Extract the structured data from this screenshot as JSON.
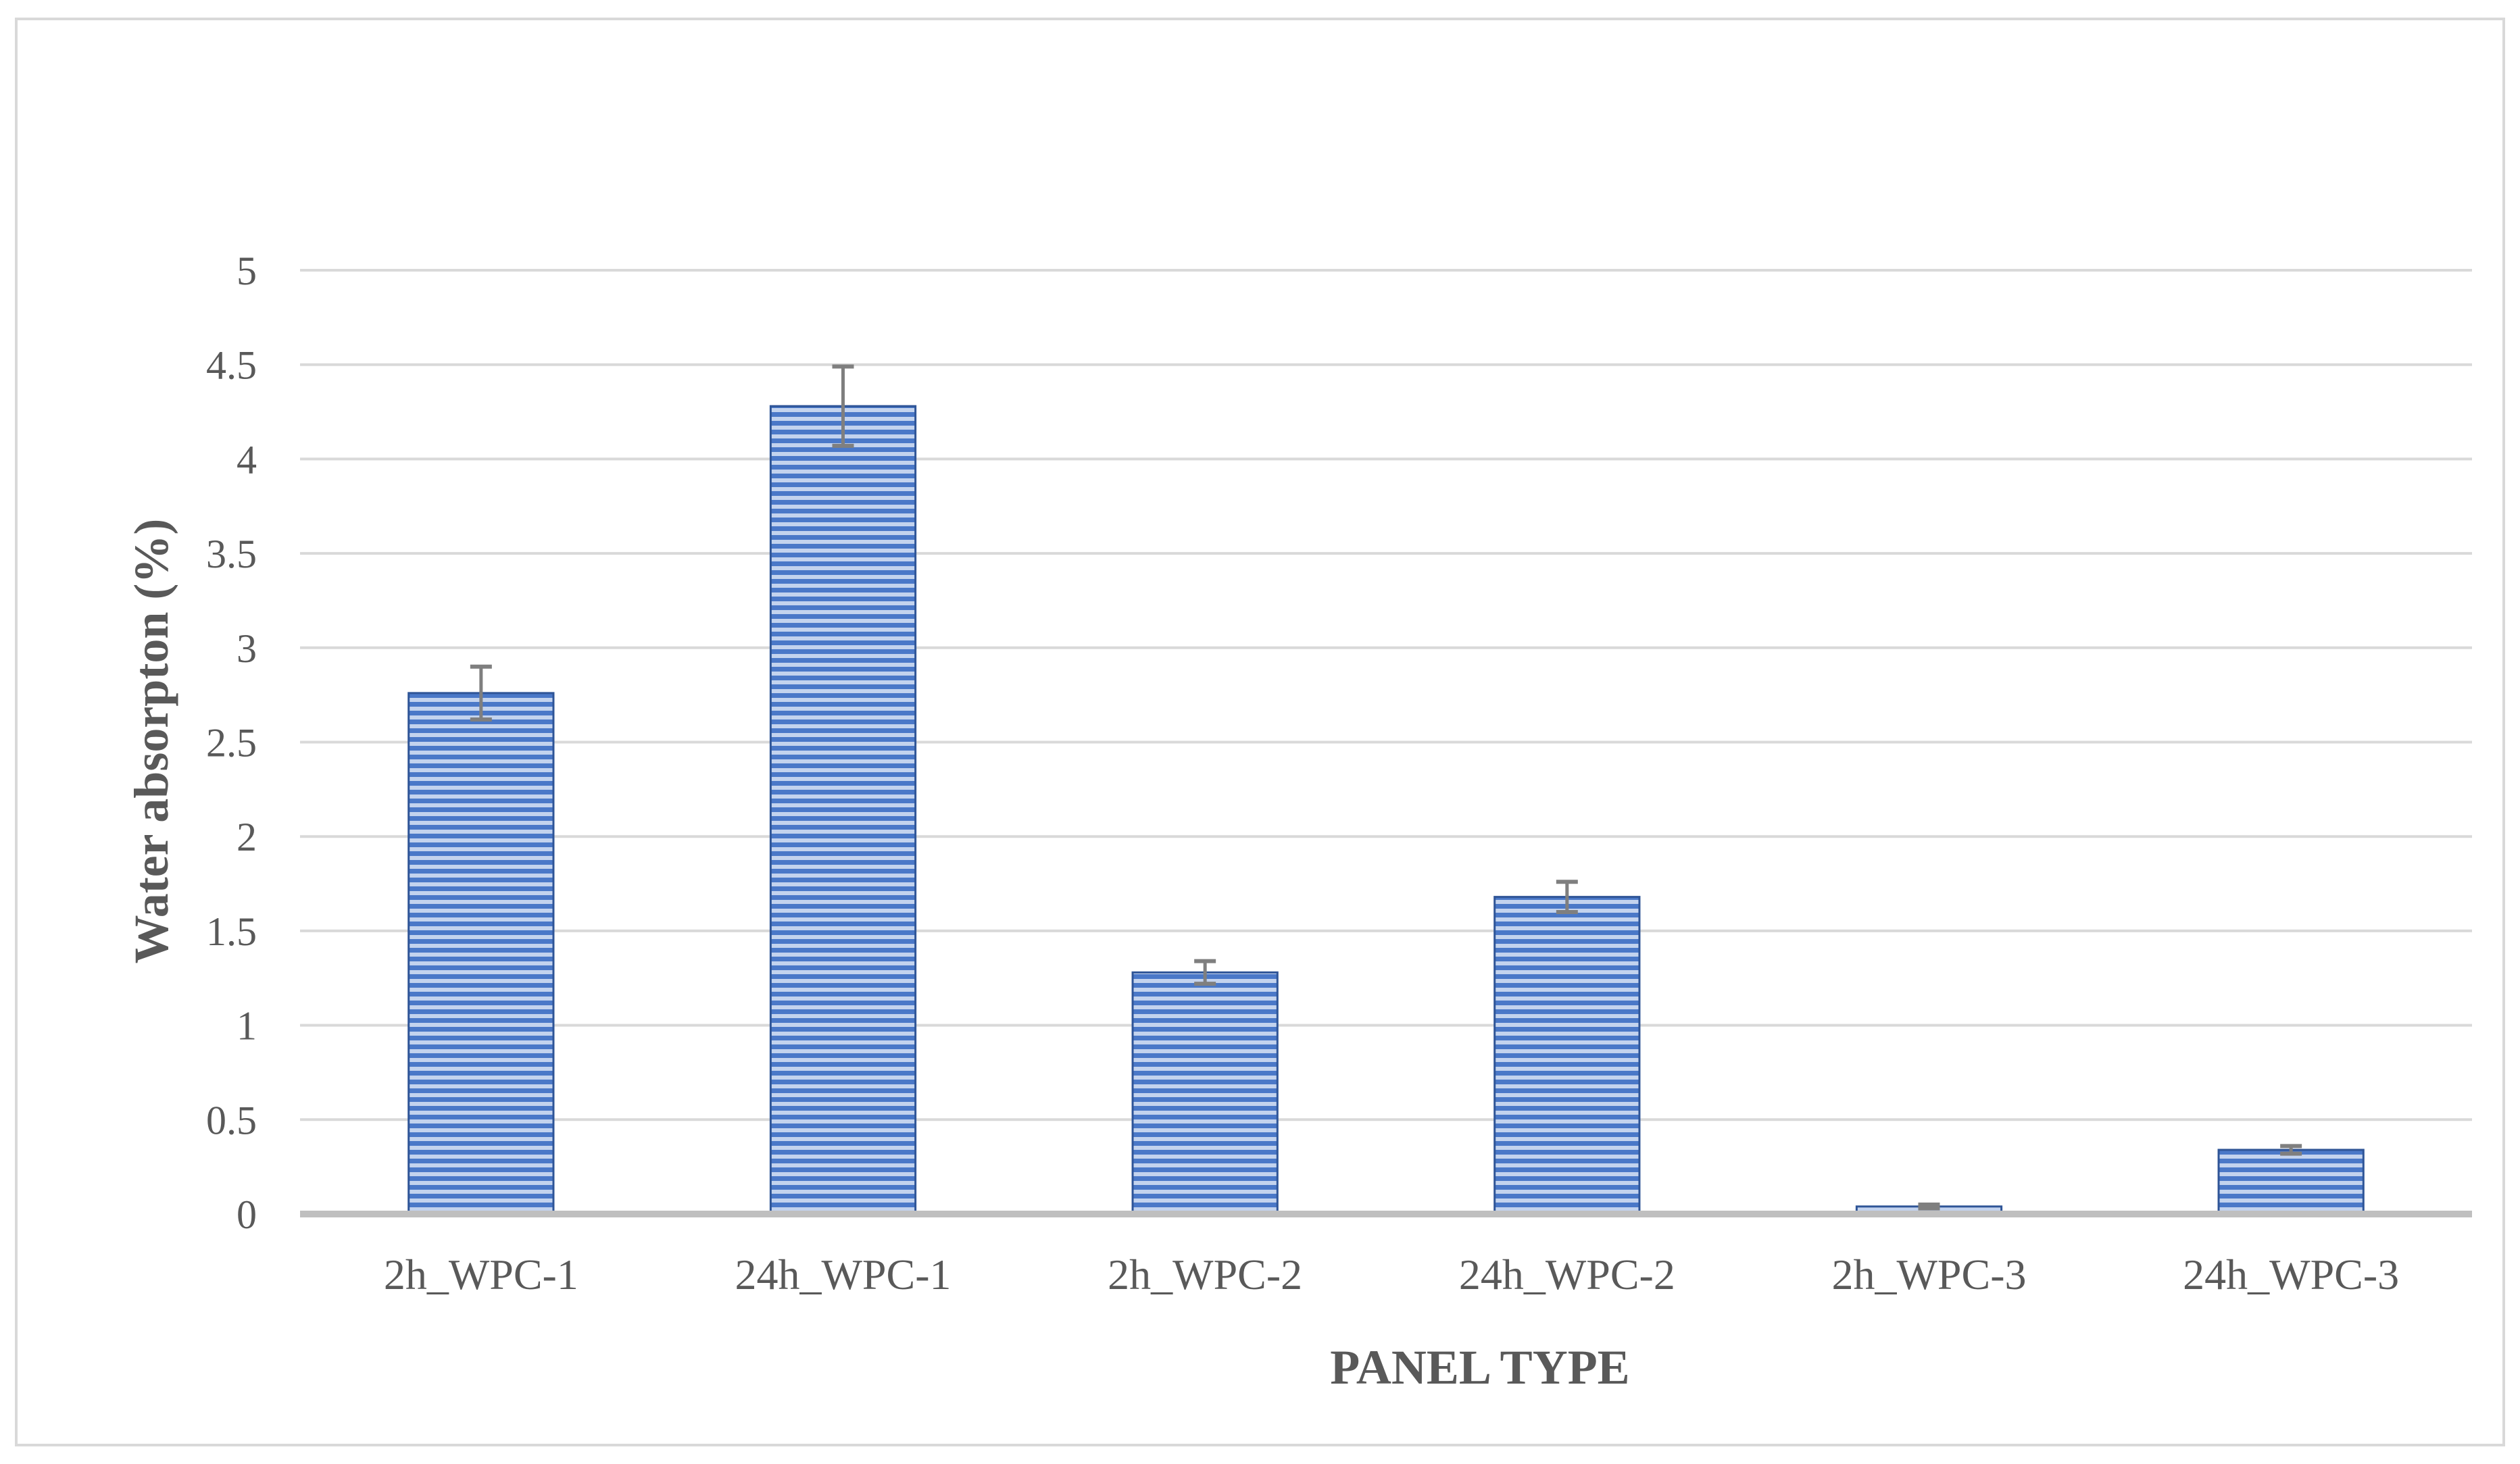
{
  "chart_data": {
    "type": "bar",
    "title": "",
    "xlabel": "PANEL TYPE",
    "ylabel": "Water absorpton (%)",
    "categories": [
      "2h_WPC-1",
      "24h_WPC-1",
      "2h_WPC-2",
      "24h_WPC-2",
      "2h_WPC-3",
      "24h_WPC-3"
    ],
    "values": [
      2.76,
      4.28,
      1.28,
      1.68,
      0.04,
      0.34
    ],
    "error": [
      0.14,
      0.21,
      0.06,
      0.08,
      0.01,
      0.02
    ],
    "ylim": [
      0,
      5
    ],
    "yticks": [
      "0",
      "0.5",
      "1",
      "1.5",
      "2",
      "2.5",
      "3",
      "3.5",
      "4",
      "4.5",
      "5"
    ],
    "grid": true,
    "legend": "none",
    "colors": {
      "bar_fill": "#4472c4",
      "bar_stripe": "#b4c7e7",
      "bar_edge": "#2f5597",
      "error_bar": "#7f7f7f",
      "gridline": "#d9d9d9",
      "axis_line": "#bfbfbf",
      "text": "#595959"
    }
  }
}
